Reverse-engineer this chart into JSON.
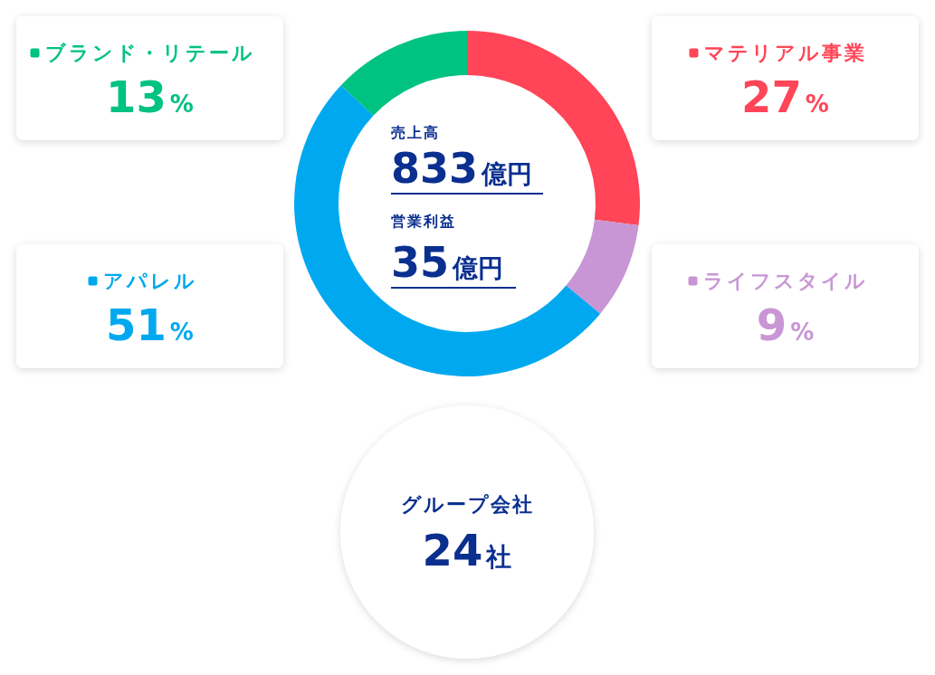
{
  "chart_data": {
    "type": "donut",
    "categories": [
      "マテリアル事業",
      "ライフスタイル",
      "アパレル",
      "ブランド・リテール"
    ],
    "values": [
      27,
      9,
      51,
      13
    ],
    "value_labels": [
      "27%",
      "9%",
      "51%",
      "13%"
    ],
    "legend": "top",
    "colors": [
      "#ff4557",
      "#c896d4",
      "#00a9ef",
      "#00c281"
    ],
    "annotations": [
      "売上高",
      "833億円",
      "営業利益",
      "35億円",
      "グループ会社",
      "24社"
    ]
  }
}
